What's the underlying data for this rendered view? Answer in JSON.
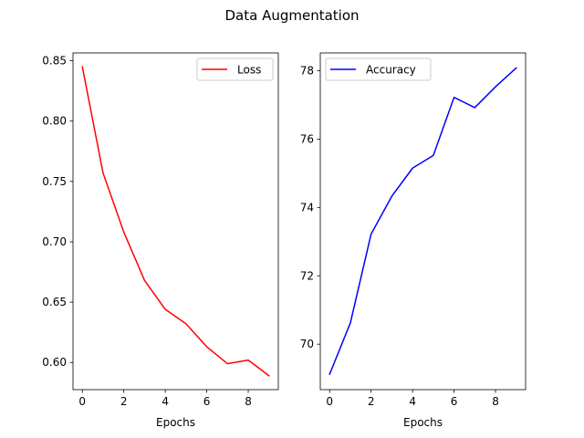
{
  "figure": {
    "title": "Data Augmentation"
  },
  "chart_data": [
    {
      "type": "line",
      "title": "",
      "xlabel": "Epochs",
      "ylabel": "",
      "x": [
        0,
        1,
        2,
        3,
        4,
        5,
        6,
        7,
        8,
        9
      ],
      "series": [
        {
          "name": "Loss",
          "color": "#ff0000",
          "values": [
            0.845,
            0.757,
            0.708,
            0.668,
            0.644,
            0.632,
            0.613,
            0.599,
            0.602,
            0.589
          ]
        }
      ],
      "xlim": [
        -0.45,
        9.45
      ],
      "ylim": [
        0.5775,
        0.8565
      ],
      "xticks": [
        0,
        2,
        4,
        6,
        8
      ],
      "yticks": [
        0.6,
        0.65,
        0.7,
        0.75,
        0.8,
        0.85
      ],
      "ytick_labels": [
        "0.60",
        "0.65",
        "0.70",
        "0.75",
        "0.80",
        "0.85"
      ],
      "legend": "top-right",
      "grid": false
    },
    {
      "type": "line",
      "title": "",
      "xlabel": "Epochs",
      "ylabel": "",
      "x": [
        0,
        1,
        2,
        3,
        4,
        5,
        6,
        7,
        8,
        9
      ],
      "series": [
        {
          "name": "Accuracy",
          "color": "#0000ff",
          "values": [
            69.12,
            70.62,
            73.22,
            74.33,
            75.15,
            75.52,
            77.22,
            76.92,
            77.53,
            78.08
          ]
        }
      ],
      "xlim": [
        -0.45,
        9.45
      ],
      "ylim": [
        68.67,
        78.52
      ],
      "xticks": [
        0,
        2,
        4,
        6,
        8
      ],
      "yticks": [
        70,
        72,
        74,
        76,
        78
      ],
      "ytick_labels": [
        "70",
        "72",
        "74",
        "76",
        "78"
      ],
      "legend": "top-left",
      "grid": false
    }
  ]
}
